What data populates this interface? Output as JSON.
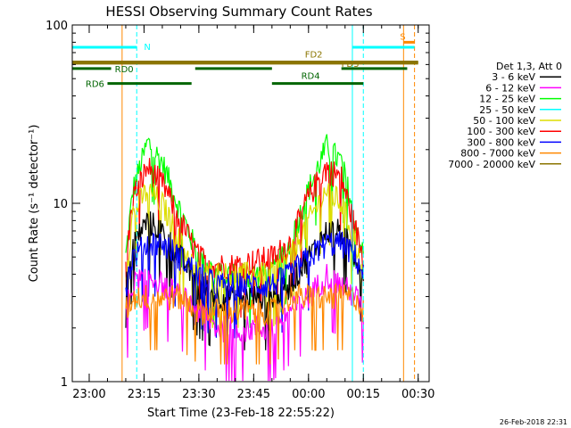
{
  "chart_data": {
    "type": "line",
    "title": "HESSI Observing Summary Count Rates",
    "xlabel": "Start Time (23-Feb-18 22:55:22)",
    "ylabel": "Count Rate (s⁻¹ detector⁻¹)",
    "yscale": "log",
    "ylim": [
      1,
      100
    ],
    "xlim": [
      "22:55:22",
      "00:33:00"
    ],
    "x_ticks": [
      "23:00",
      "23:15",
      "23:30",
      "23:45",
      "00:00",
      "00:15",
      "00:30"
    ],
    "y_ticks": [
      "1",
      "10",
      "100"
    ],
    "timestamp": "26-Feb-2018 22:31",
    "legend": {
      "title": "Det 1,3, Att 0",
      "entries": [
        {
          "label": "3 - 6 keV",
          "color": "#000000"
        },
        {
          "label": "6 - 12 keV",
          "color": "#ff00ff"
        },
        {
          "label": "12 - 25 keV",
          "color": "#00ff00"
        },
        {
          "label": "25 - 50 keV",
          "color": "#00ffff"
        },
        {
          "label": "50 - 100 keV",
          "color": "#dddd00"
        },
        {
          "label": "100 - 300 keV",
          "color": "#ff0000"
        },
        {
          "label": "300 - 800 keV",
          "color": "#0000ff"
        },
        {
          "label": "800 - 7000 keV",
          "color": "#ff8800"
        },
        {
          "label": "7000 - 20000 keV",
          "color": "#8b7500"
        }
      ]
    },
    "series": [
      {
        "name": "12 - 25 keV",
        "color": "#00ff00",
        "points": [
          [
            "23:10",
            5
          ],
          [
            "23:12",
            12
          ],
          [
            "23:16",
            22
          ],
          [
            "23:20",
            17
          ],
          [
            "23:25",
            9
          ],
          [
            "23:30",
            5
          ],
          [
            "23:35",
            4
          ],
          [
            "23:40",
            4
          ],
          [
            "23:50",
            4
          ],
          [
            "23:55",
            6
          ],
          [
            "00:00",
            12
          ],
          [
            "00:05",
            21
          ],
          [
            "00:09",
            17
          ],
          [
            "00:13",
            8
          ],
          [
            "00:15",
            5
          ]
        ]
      },
      {
        "name": "100 - 300 keV",
        "color": "#ff0000",
        "points": [
          [
            "23:10",
            4.5
          ],
          [
            "23:12",
            11
          ],
          [
            "23:16",
            16
          ],
          [
            "23:20",
            13
          ],
          [
            "23:25",
            8
          ],
          [
            "23:30",
            5
          ],
          [
            "23:35",
            4.5
          ],
          [
            "23:40",
            4.5
          ],
          [
            "23:50",
            5
          ],
          [
            "23:55",
            6
          ],
          [
            "00:00",
            11
          ],
          [
            "00:05",
            16
          ],
          [
            "00:09",
            14
          ],
          [
            "00:13",
            7
          ],
          [
            "00:15",
            5
          ]
        ]
      },
      {
        "name": "50 - 100 keV",
        "color": "#dddd00",
        "points": [
          [
            "23:10",
            4
          ],
          [
            "23:12",
            9
          ],
          [
            "23:16",
            12
          ],
          [
            "23:20",
            10
          ],
          [
            "23:25",
            6
          ],
          [
            "23:30",
            4
          ],
          [
            "23:35",
            4
          ],
          [
            "23:40",
            4
          ],
          [
            "23:50",
            4
          ],
          [
            "23:55",
            5
          ],
          [
            "00:00",
            8
          ],
          [
            "00:05",
            12
          ],
          [
            "00:09",
            10
          ],
          [
            "00:13",
            6
          ],
          [
            "00:15",
            4
          ]
        ]
      },
      {
        "name": "3 - 6 keV",
        "color": "#000000",
        "points": [
          [
            "23:10",
            4
          ],
          [
            "23:12",
            6
          ],
          [
            "23:16",
            8
          ],
          [
            "23:20",
            7
          ],
          [
            "23:25",
            5
          ],
          [
            "23:30",
            3.5
          ],
          [
            "23:35",
            3
          ],
          [
            "23:40",
            3
          ],
          [
            "23:50",
            3
          ],
          [
            "23:55",
            3.5
          ],
          [
            "00:00",
            5
          ],
          [
            "00:05",
            7
          ],
          [
            "00:09",
            7
          ],
          [
            "00:13",
            5
          ],
          [
            "00:15",
            4
          ]
        ]
      },
      {
        "name": "300 - 800 keV",
        "color": "#0000ff",
        "points": [
          [
            "23:10",
            3.5
          ],
          [
            "23:12",
            5
          ],
          [
            "23:16",
            6
          ],
          [
            "23:20",
            6
          ],
          [
            "23:25",
            5
          ],
          [
            "23:30",
            4
          ],
          [
            "23:35",
            3.5
          ],
          [
            "23:40",
            3.5
          ],
          [
            "23:50",
            3.5
          ],
          [
            "23:55",
            4
          ],
          [
            "00:00",
            5
          ],
          [
            "00:05",
            6
          ],
          [
            "00:09",
            6
          ],
          [
            "00:13",
            5
          ],
          [
            "00:15",
            4
          ]
        ]
      },
      {
        "name": "6 - 12 keV",
        "color": "#ff00ff",
        "points": [
          [
            "23:10",
            2.5
          ],
          [
            "23:12",
            3.5
          ],
          [
            "23:16",
            4
          ],
          [
            "23:20",
            3.5
          ],
          [
            "23:25",
            3
          ],
          [
            "23:30",
            2.5
          ],
          [
            "23:35",
            2
          ],
          [
            "23:40",
            2
          ],
          [
            "23:50",
            2
          ],
          [
            "23:55",
            2.5
          ],
          [
            "00:00",
            3
          ],
          [
            "00:05",
            4
          ],
          [
            "00:09",
            3.5
          ],
          [
            "00:13",
            3
          ],
          [
            "00:15",
            2.5
          ]
        ]
      },
      {
        "name": "800 - 7000 keV",
        "color": "#ff8800",
        "points": [
          [
            "23:10",
            2.5
          ],
          [
            "23:12",
            3
          ],
          [
            "23:16",
            3
          ],
          [
            "23:20",
            3
          ],
          [
            "23:25",
            3
          ],
          [
            "23:30",
            2.5
          ],
          [
            "23:35",
            2.5
          ],
          [
            "23:40",
            2.5
          ],
          [
            "23:50",
            2.5
          ],
          [
            "23:55",
            3
          ],
          [
            "00:00",
            3
          ],
          [
            "00:05",
            3
          ],
          [
            "00:09",
            3
          ],
          [
            "00:13",
            3
          ],
          [
            "00:15",
            2.5
          ]
        ]
      }
    ],
    "overlays": {
      "horizontal_bars": [
        {
          "label": "N",
          "color": "#00ffff",
          "y": 75,
          "segments": [
            [
              "22:55:22",
              "23:13"
            ],
            [
              "00:12",
              "00:29"
            ]
          ]
        },
        {
          "label": "S",
          "color": "#ff8800",
          "y": 80,
          "segments": [
            [
              "00:26",
              "00:29"
            ]
          ]
        },
        {
          "label": "FD2",
          "color": "#8b7500",
          "y": 62,
          "segments": [
            [
              "22:55:22",
              "00:30"
            ]
          ]
        },
        {
          "label": "FD3",
          "color": "#8b7500",
          "y": 61,
          "segments": [
            [
              "22:55:22",
              "00:30"
            ]
          ]
        },
        {
          "label": "RD0",
          "color": "#006400",
          "y": 57,
          "segments": [
            [
              "22:55:22",
              "23:06"
            ],
            [
              "23:29",
              "23:50"
            ],
            [
              "00:09",
              "00:27"
            ]
          ]
        },
        {
          "label": "RD6",
          "color": "#006400",
          "y": 47,
          "segments": [
            [
              "23:05",
              "23:28"
            ]
          ]
        },
        {
          "label": "RD4",
          "color": "#006400",
          "y": 47,
          "segments": [
            [
              "23:50",
              "00:15"
            ]
          ]
        }
      ],
      "vertical_lines": [
        {
          "time": "22:55:22",
          "color": "#00ffff",
          "style": "solid"
        },
        {
          "time": "23:13",
          "color": "#00ffff",
          "style": "dashed"
        },
        {
          "time": "00:12",
          "color": "#00ffff",
          "style": "solid"
        },
        {
          "time": "00:15",
          "color": "#00ffff",
          "style": "dashed"
        },
        {
          "time": "23:09",
          "color": "#ff8800",
          "style": "solid"
        },
        {
          "time": "00:26",
          "color": "#ff8800",
          "style": "solid"
        },
        {
          "time": "00:29",
          "color": "#ff8800",
          "style": "dashed"
        }
      ]
    }
  }
}
